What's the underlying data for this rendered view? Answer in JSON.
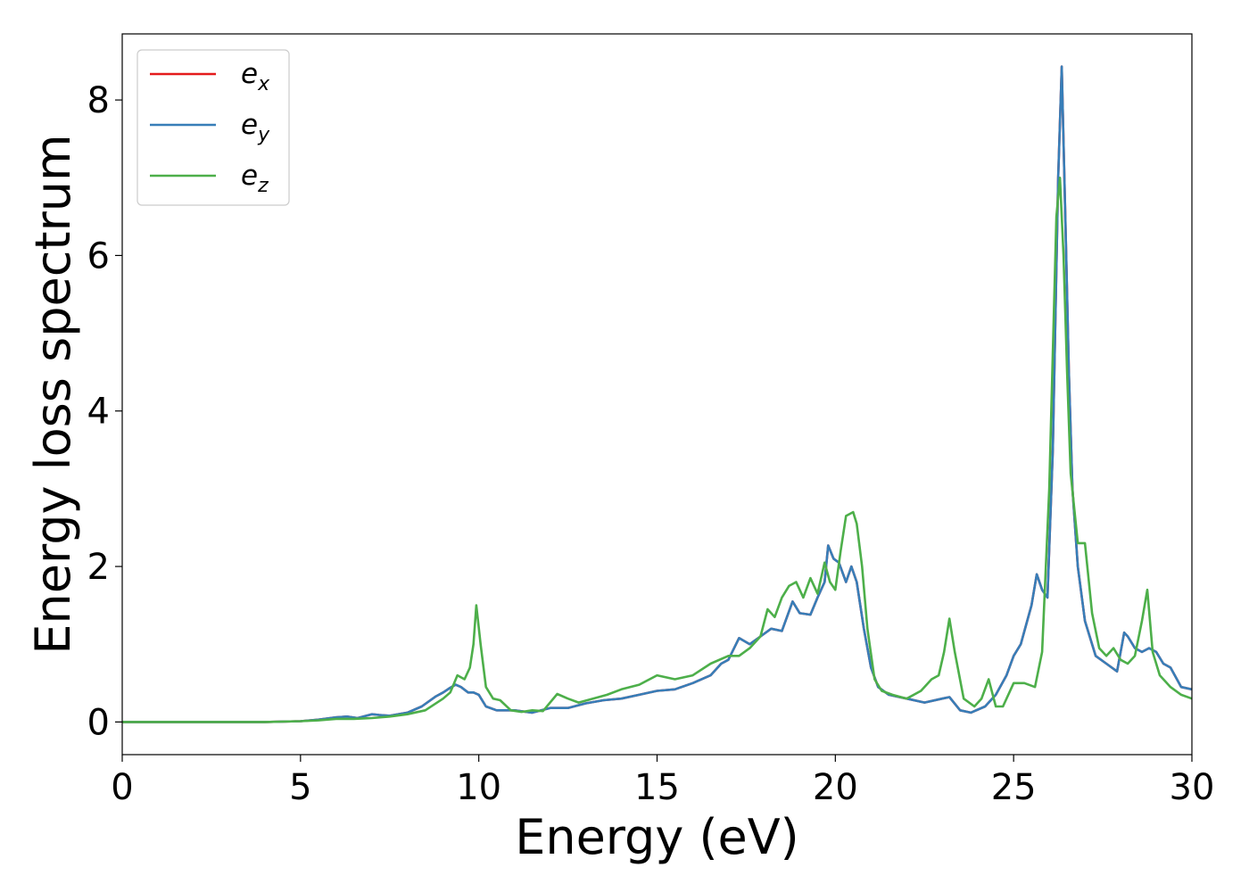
{
  "chart_data": {
    "type": "line",
    "title": "",
    "xlabel": "Energy (eV)",
    "ylabel": "Energy loss spectrum",
    "xlim": [
      0,
      30
    ],
    "ylim": [
      -0.42,
      8.85
    ],
    "xticks": [
      0,
      5,
      10,
      15,
      20,
      25,
      30
    ],
    "yticks": [
      0,
      2,
      4,
      6,
      8
    ],
    "grid": false,
    "legend_position": "top-left",
    "series": [
      {
        "name": "e",
        "subscript": "x",
        "color": "#e41a1c",
        "x": [
          0,
          1,
          2,
          3,
          4,
          5,
          5.5,
          6.0,
          6.3,
          6.6,
          7.0,
          7.2,
          7.5,
          8.0,
          8.4,
          8.8,
          9.0,
          9.2,
          9.35,
          9.5,
          9.7,
          9.85,
          10.0,
          10.2,
          10.5,
          11.0,
          11.5,
          12.0,
          12.5,
          13.0,
          13.5,
          14.0,
          14.5,
          15.0,
          15.5,
          16.0,
          16.5,
          16.8,
          17.0,
          17.3,
          17.6,
          17.9,
          18.2,
          18.5,
          18.8,
          19.0,
          19.3,
          19.5,
          19.7,
          19.8,
          19.95,
          20.1,
          20.3,
          20.45,
          20.6,
          20.8,
          21.0,
          21.2,
          21.5,
          22.0,
          22.5,
          23.0,
          23.2,
          23.5,
          23.8,
          24.2,
          24.5,
          24.8,
          25.0,
          25.2,
          25.5,
          25.65,
          25.8,
          25.95,
          26.1,
          26.25,
          26.35,
          26.45,
          26.55,
          26.65,
          26.8,
          27.0,
          27.3,
          27.6,
          27.9,
          28.1,
          28.2,
          28.4,
          28.6,
          28.8,
          29.0,
          29.2,
          29.4,
          29.7,
          30.0
        ],
        "y": [
          0,
          0,
          0,
          0,
          0,
          0.01,
          0.03,
          0.06,
          0.07,
          0.05,
          0.1,
          0.09,
          0.08,
          0.12,
          0.2,
          0.33,
          0.38,
          0.44,
          0.48,
          0.45,
          0.38,
          0.38,
          0.35,
          0.2,
          0.15,
          0.15,
          0.12,
          0.18,
          0.18,
          0.24,
          0.28,
          0.3,
          0.35,
          0.4,
          0.42,
          0.5,
          0.6,
          0.75,
          0.8,
          1.08,
          1.0,
          1.1,
          1.2,
          1.17,
          1.55,
          1.4,
          1.38,
          1.6,
          1.8,
          2.27,
          2.1,
          2.05,
          1.8,
          2.0,
          1.8,
          1.2,
          0.7,
          0.45,
          0.35,
          0.3,
          0.25,
          0.3,
          0.32,
          0.15,
          0.12,
          0.2,
          0.35,
          0.6,
          0.85,
          1.0,
          1.5,
          1.9,
          1.7,
          1.6,
          3.5,
          7.0,
          8.43,
          6.5,
          4.5,
          3.0,
          2.0,
          1.3,
          0.85,
          0.75,
          0.65,
          1.15,
          1.1,
          0.95,
          0.9,
          0.95,
          0.9,
          0.75,
          0.7,
          0.45,
          0.42
        ]
      },
      {
        "name": "e",
        "subscript": "y",
        "color": "#377eb8",
        "x": [
          0,
          1,
          2,
          3,
          4,
          5,
          5.5,
          6.0,
          6.3,
          6.6,
          7.0,
          7.2,
          7.5,
          8.0,
          8.4,
          8.8,
          9.0,
          9.2,
          9.35,
          9.5,
          9.7,
          9.85,
          10.0,
          10.2,
          10.5,
          11.0,
          11.5,
          12.0,
          12.5,
          13.0,
          13.5,
          14.0,
          14.5,
          15.0,
          15.5,
          16.0,
          16.5,
          16.8,
          17.0,
          17.3,
          17.6,
          17.9,
          18.2,
          18.5,
          18.8,
          19.0,
          19.3,
          19.5,
          19.7,
          19.8,
          19.95,
          20.1,
          20.3,
          20.45,
          20.6,
          20.8,
          21.0,
          21.2,
          21.5,
          22.0,
          22.5,
          23.0,
          23.2,
          23.5,
          23.8,
          24.2,
          24.5,
          24.8,
          25.0,
          25.2,
          25.5,
          25.65,
          25.8,
          25.95,
          26.1,
          26.25,
          26.35,
          26.45,
          26.55,
          26.65,
          26.8,
          27.0,
          27.3,
          27.6,
          27.9,
          28.1,
          28.2,
          28.4,
          28.6,
          28.8,
          29.0,
          29.2,
          29.4,
          29.7,
          30.0
        ],
        "y": [
          0,
          0,
          0,
          0,
          0,
          0.01,
          0.03,
          0.06,
          0.07,
          0.05,
          0.1,
          0.09,
          0.08,
          0.12,
          0.2,
          0.33,
          0.38,
          0.44,
          0.48,
          0.45,
          0.38,
          0.38,
          0.35,
          0.2,
          0.15,
          0.15,
          0.12,
          0.18,
          0.18,
          0.24,
          0.28,
          0.3,
          0.35,
          0.4,
          0.42,
          0.5,
          0.6,
          0.75,
          0.8,
          1.08,
          1.0,
          1.1,
          1.2,
          1.17,
          1.55,
          1.4,
          1.38,
          1.6,
          1.8,
          2.27,
          2.1,
          2.05,
          1.8,
          2.0,
          1.8,
          1.2,
          0.7,
          0.45,
          0.35,
          0.3,
          0.25,
          0.3,
          0.32,
          0.15,
          0.12,
          0.2,
          0.35,
          0.6,
          0.85,
          1.0,
          1.5,
          1.9,
          1.7,
          1.6,
          3.5,
          7.0,
          8.43,
          6.5,
          4.5,
          3.0,
          2.0,
          1.3,
          0.85,
          0.75,
          0.65,
          1.15,
          1.1,
          0.95,
          0.9,
          0.95,
          0.9,
          0.75,
          0.7,
          0.45,
          0.42
        ]
      },
      {
        "name": "e",
        "subscript": "z",
        "color": "#4daf4a",
        "x": [
          0,
          1,
          2,
          3,
          4,
          5,
          5.5,
          6.0,
          6.5,
          7.0,
          7.5,
          8.0,
          8.5,
          9.0,
          9.2,
          9.4,
          9.6,
          9.75,
          9.85,
          9.93,
          10.05,
          10.2,
          10.4,
          10.6,
          10.9,
          11.2,
          11.5,
          11.8,
          12.2,
          12.5,
          12.8,
          13.2,
          13.6,
          14.0,
          14.5,
          15.0,
          15.5,
          16.0,
          16.5,
          17.0,
          17.3,
          17.6,
          17.9,
          18.1,
          18.3,
          18.5,
          18.7,
          18.9,
          19.1,
          19.3,
          19.5,
          19.7,
          19.85,
          20.0,
          20.15,
          20.3,
          20.5,
          20.6,
          20.75,
          20.9,
          21.1,
          21.3,
          21.6,
          22.0,
          22.4,
          22.7,
          22.9,
          23.05,
          23.2,
          23.35,
          23.6,
          23.9,
          24.1,
          24.3,
          24.5,
          24.7,
          25.0,
          25.3,
          25.6,
          25.8,
          26.0,
          26.2,
          26.3,
          26.4,
          26.5,
          26.6,
          26.8,
          27.0,
          27.2,
          27.4,
          27.6,
          27.8,
          28.0,
          28.2,
          28.4,
          28.6,
          28.75,
          28.9,
          29.1,
          29.4,
          29.7,
          30.0
        ],
        "y": [
          0,
          0,
          0,
          0,
          0,
          0.01,
          0.02,
          0.04,
          0.04,
          0.05,
          0.07,
          0.1,
          0.15,
          0.3,
          0.38,
          0.6,
          0.55,
          0.7,
          1.0,
          1.5,
          1.0,
          0.45,
          0.3,
          0.28,
          0.15,
          0.13,
          0.15,
          0.14,
          0.36,
          0.3,
          0.25,
          0.3,
          0.35,
          0.42,
          0.48,
          0.6,
          0.55,
          0.6,
          0.75,
          0.85,
          0.85,
          0.95,
          1.1,
          1.45,
          1.35,
          1.6,
          1.75,
          1.8,
          1.6,
          1.85,
          1.65,
          2.05,
          1.8,
          1.7,
          2.2,
          2.65,
          2.7,
          2.55,
          2.0,
          1.2,
          0.55,
          0.4,
          0.35,
          0.3,
          0.4,
          0.55,
          0.6,
          0.9,
          1.33,
          0.9,
          0.3,
          0.2,
          0.3,
          0.55,
          0.2,
          0.2,
          0.5,
          0.5,
          0.45,
          0.9,
          3.0,
          6.5,
          7.0,
          6.0,
          4.5,
          3.2,
          2.3,
          2.3,
          1.4,
          0.95,
          0.85,
          0.95,
          0.8,
          0.75,
          0.85,
          1.3,
          1.7,
          0.9,
          0.6,
          0.45,
          0.35,
          0.3
        ]
      }
    ]
  }
}
